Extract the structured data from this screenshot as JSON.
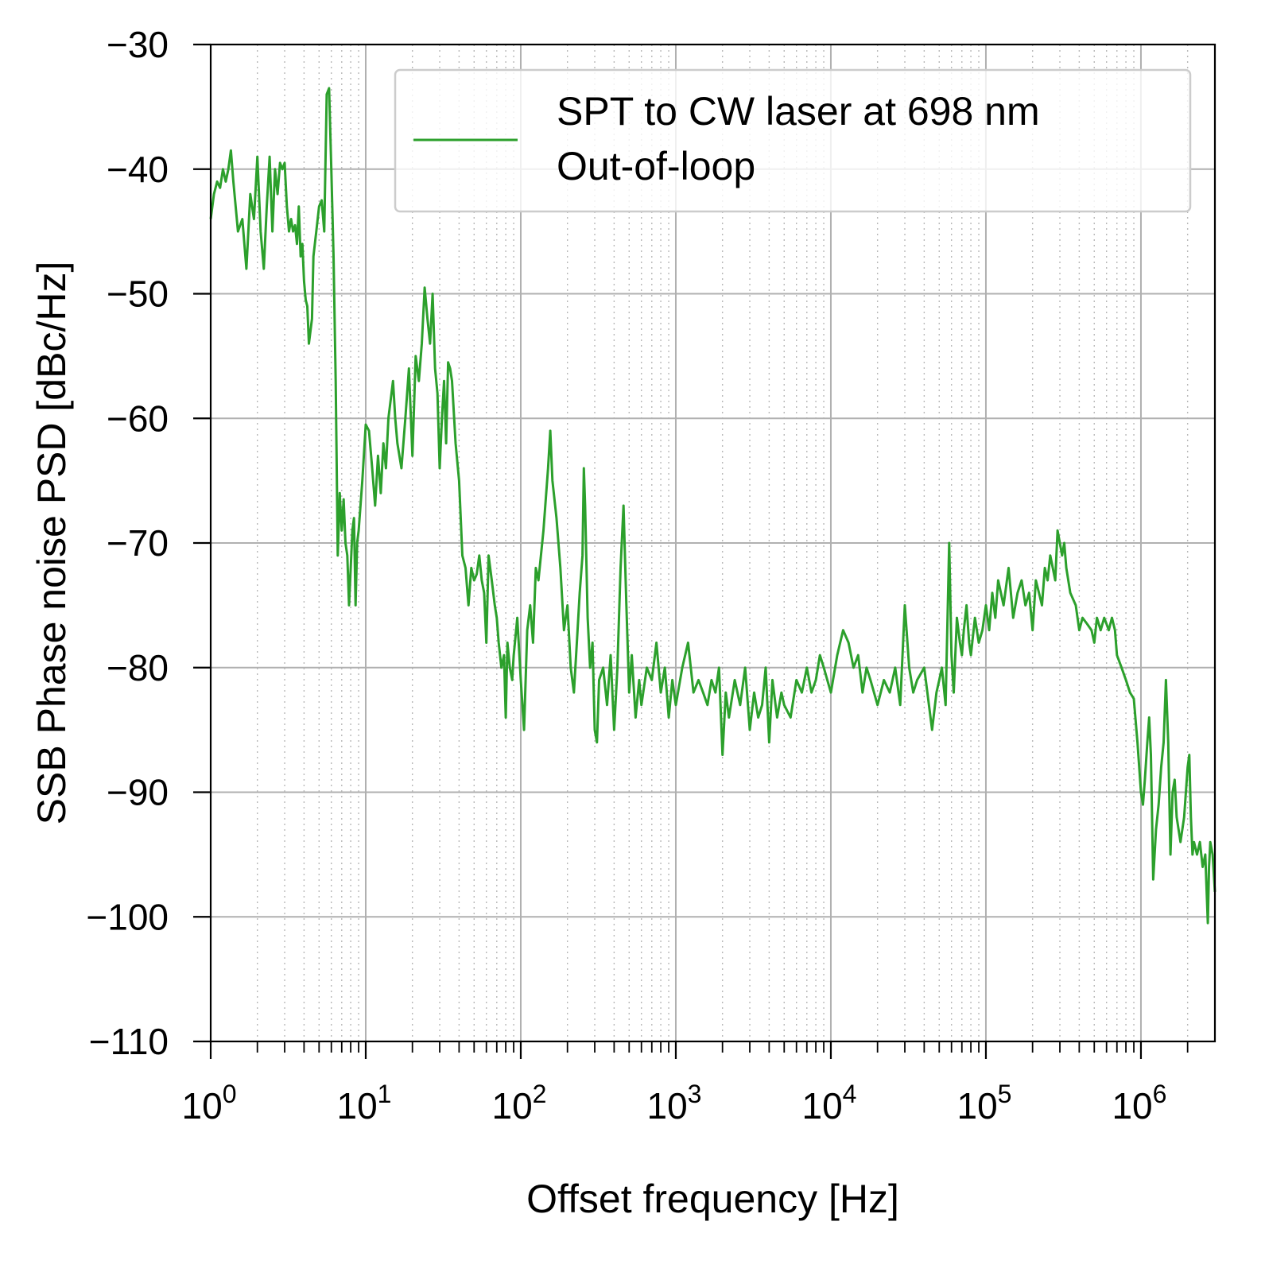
{
  "chart_data": {
    "type": "line",
    "xlabel": "Offset frequency [Hz]",
    "ylabel": "SSB Phase noise PSD [dBc/Hz]",
    "xscale": "log",
    "xlim": [
      1,
      3000000
    ],
    "ylim": [
      -110,
      -30
    ],
    "yticks": [
      "−30",
      "−40",
      "−50",
      "−60",
      "−70",
      "−80",
      "−90",
      "−100",
      "−110"
    ],
    "xticks": [
      {
        "base": "10",
        "exp": "0"
      },
      {
        "base": "10",
        "exp": "1"
      },
      {
        "base": "10",
        "exp": "2"
      },
      {
        "base": "10",
        "exp": "3"
      },
      {
        "base": "10",
        "exp": "4"
      },
      {
        "base": "10",
        "exp": "5"
      },
      {
        "base": "10",
        "exp": "6"
      }
    ],
    "grid": true,
    "legend_position": "top-right",
    "legend_lines": [
      "SPT to CW laser at 698 nm",
      "Out-of-loop"
    ],
    "series": [
      {
        "color": "#2ca02c",
        "points": [
          [
            1.0,
            -44
          ],
          [
            1.05,
            -42
          ],
          [
            1.1,
            -41
          ],
          [
            1.15,
            -41.5
          ],
          [
            1.2,
            -40
          ],
          [
            1.25,
            -41
          ],
          [
            1.3,
            -40
          ],
          [
            1.35,
            -38.5
          ],
          [
            1.4,
            -41
          ],
          [
            1.5,
            -45
          ],
          [
            1.6,
            -44
          ],
          [
            1.7,
            -48
          ],
          [
            1.8,
            -42
          ],
          [
            1.9,
            -44
          ],
          [
            2.0,
            -39
          ],
          [
            2.1,
            -45
          ],
          [
            2.2,
            -48
          ],
          [
            2.3,
            -43
          ],
          [
            2.4,
            -39
          ],
          [
            2.5,
            -45
          ],
          [
            2.6,
            -40
          ],
          [
            2.7,
            -42
          ],
          [
            2.8,
            -39.5
          ],
          [
            2.9,
            -40
          ],
          [
            3.0,
            -39.5
          ],
          [
            3.1,
            -43
          ],
          [
            3.2,
            -45
          ],
          [
            3.3,
            -44
          ],
          [
            3.4,
            -45
          ],
          [
            3.5,
            -44.5
          ],
          [
            3.6,
            -46
          ],
          [
            3.7,
            -43
          ],
          [
            3.8,
            -47
          ],
          [
            3.9,
            -46
          ],
          [
            4.0,
            -49
          ],
          [
            4.1,
            -50.5
          ],
          [
            4.2,
            -51
          ],
          [
            4.3,
            -54
          ],
          [
            4.5,
            -52
          ],
          [
            4.6,
            -47
          ],
          [
            4.8,
            -45
          ],
          [
            5.0,
            -43
          ],
          [
            5.2,
            -42.5
          ],
          [
            5.4,
            -45
          ],
          [
            5.6,
            -34
          ],
          [
            5.8,
            -33.5
          ],
          [
            6.0,
            -40
          ],
          [
            6.2,
            -47
          ],
          [
            6.4,
            -57
          ],
          [
            6.6,
            -71
          ],
          [
            6.8,
            -66
          ],
          [
            7.0,
            -69
          ],
          [
            7.2,
            -66.5
          ],
          [
            7.4,
            -70
          ],
          [
            7.6,
            -71
          ],
          [
            7.8,
            -75
          ],
          [
            8.0,
            -72
          ],
          [
            8.2,
            -69
          ],
          [
            8.4,
            -68
          ],
          [
            8.6,
            -75
          ],
          [
            8.8,
            -70
          ],
          [
            9.0,
            -69
          ],
          [
            9.5,
            -65
          ],
          [
            10,
            -60.5
          ],
          [
            10.5,
            -61
          ],
          [
            11,
            -64
          ],
          [
            11.5,
            -67
          ],
          [
            12,
            -63
          ],
          [
            12.5,
            -66
          ],
          [
            13,
            -62
          ],
          [
            13.5,
            -64
          ],
          [
            14,
            -60
          ],
          [
            15,
            -57
          ],
          [
            15.5,
            -60
          ],
          [
            16,
            -62
          ],
          [
            17,
            -64
          ],
          [
            18,
            -60
          ],
          [
            19,
            -56
          ],
          [
            20,
            -63
          ],
          [
            21,
            -55
          ],
          [
            22,
            -57
          ],
          [
            23,
            -54
          ],
          [
            24,
            -49.5
          ],
          [
            25,
            -52
          ],
          [
            26,
            -54
          ],
          [
            27,
            -50
          ],
          [
            28,
            -56
          ],
          [
            29,
            -58
          ],
          [
            30,
            -64
          ],
          [
            31,
            -60
          ],
          [
            32,
            -57
          ],
          [
            33,
            -62
          ],
          [
            34,
            -55.5
          ],
          [
            35,
            -56
          ],
          [
            36,
            -57
          ],
          [
            38,
            -62
          ],
          [
            40,
            -65
          ],
          [
            42,
            -71
          ],
          [
            44,
            -72
          ],
          [
            46,
            -75
          ],
          [
            48,
            -72
          ],
          [
            50,
            -73
          ],
          [
            52,
            -72.5
          ],
          [
            54,
            -71
          ],
          [
            56,
            -73
          ],
          [
            58,
            -74
          ],
          [
            60,
            -78
          ],
          [
            62,
            -71
          ],
          [
            65,
            -73
          ],
          [
            68,
            -75
          ],
          [
            70,
            -76
          ],
          [
            72,
            -78
          ],
          [
            75,
            -80
          ],
          [
            78,
            -79
          ],
          [
            80,
            -84
          ],
          [
            82,
            -78
          ],
          [
            85,
            -80
          ],
          [
            88,
            -81
          ],
          [
            90,
            -79
          ],
          [
            95,
            -76
          ],
          [
            100,
            -81
          ],
          [
            105,
            -85
          ],
          [
            110,
            -77
          ],
          [
            115,
            -75
          ],
          [
            120,
            -78
          ],
          [
            125,
            -72
          ],
          [
            130,
            -73
          ],
          [
            140,
            -69
          ],
          [
            150,
            -64
          ],
          [
            155,
            -61
          ],
          [
            160,
            -65
          ],
          [
            170,
            -68
          ],
          [
            180,
            -72
          ],
          [
            190,
            -77
          ],
          [
            200,
            -75
          ],
          [
            210,
            -80
          ],
          [
            220,
            -82
          ],
          [
            230,
            -78
          ],
          [
            240,
            -74
          ],
          [
            250,
            -71
          ],
          [
            255,
            -64
          ],
          [
            260,
            -67
          ],
          [
            270,
            -76
          ],
          [
            280,
            -80
          ],
          [
            290,
            -78
          ],
          [
            300,
            -85
          ],
          [
            310,
            -86
          ],
          [
            320,
            -81
          ],
          [
            340,
            -80
          ],
          [
            360,
            -83
          ],
          [
            380,
            -79
          ],
          [
            400,
            -85
          ],
          [
            420,
            -80
          ],
          [
            440,
            -72
          ],
          [
            460,
            -67
          ],
          [
            480,
            -75
          ],
          [
            500,
            -82
          ],
          [
            520,
            -79
          ],
          [
            550,
            -84
          ],
          [
            580,
            -81
          ],
          [
            600,
            -83
          ],
          [
            650,
            -80
          ],
          [
            700,
            -81
          ],
          [
            750,
            -78
          ],
          [
            800,
            -82
          ],
          [
            850,
            -80
          ],
          [
            900,
            -84
          ],
          [
            950,
            -81
          ],
          [
            1000,
            -83
          ],
          [
            1100,
            -80
          ],
          [
            1200,
            -78
          ],
          [
            1300,
            -82
          ],
          [
            1400,
            -81
          ],
          [
            1500,
            -82
          ],
          [
            1600,
            -83
          ],
          [
            1700,
            -81
          ],
          [
            1800,
            -82
          ],
          [
            1900,
            -80
          ],
          [
            2000,
            -87
          ],
          [
            2100,
            -82
          ],
          [
            2200,
            -84
          ],
          [
            2400,
            -81
          ],
          [
            2600,
            -83
          ],
          [
            2800,
            -80
          ],
          [
            3000,
            -85
          ],
          [
            3200,
            -82
          ],
          [
            3400,
            -84
          ],
          [
            3600,
            -83
          ],
          [
            3800,
            -80
          ],
          [
            4000,
            -86
          ],
          [
            4200,
            -81
          ],
          [
            4500,
            -84
          ],
          [
            4800,
            -82
          ],
          [
            5000,
            -83
          ],
          [
            5500,
            -84
          ],
          [
            6000,
            -81
          ],
          [
            6500,
            -82
          ],
          [
            7000,
            -80
          ],
          [
            7500,
            -82
          ],
          [
            8000,
            -81
          ],
          [
            8500,
            -79
          ],
          [
            9000,
            -80
          ],
          [
            10000,
            -82
          ],
          [
            11000,
            -79
          ],
          [
            12000,
            -77
          ],
          [
            13000,
            -78
          ],
          [
            14000,
            -80
          ],
          [
            15000,
            -79
          ],
          [
            16000,
            -82
          ],
          [
            17000,
            -80
          ],
          [
            18000,
            -81
          ],
          [
            20000,
            -83
          ],
          [
            22000,
            -81
          ],
          [
            24000,
            -82
          ],
          [
            26000,
            -80
          ],
          [
            28000,
            -83
          ],
          [
            30000,
            -75
          ],
          [
            32000,
            -80
          ],
          [
            34000,
            -82
          ],
          [
            36000,
            -81
          ],
          [
            40000,
            -80
          ],
          [
            45000,
            -85
          ],
          [
            48000,
            -82
          ],
          [
            50000,
            -81
          ],
          [
            52000,
            -80
          ],
          [
            55000,
            -83
          ],
          [
            58000,
            -70
          ],
          [
            60000,
            -79
          ],
          [
            62000,
            -82
          ],
          [
            65000,
            -76
          ],
          [
            68000,
            -78
          ],
          [
            70000,
            -79
          ],
          [
            72000,
            -77
          ],
          [
            75000,
            -75
          ],
          [
            78000,
            -78
          ],
          [
            80000,
            -79
          ],
          [
            85000,
            -76
          ],
          [
            90000,
            -78
          ],
          [
            95000,
            -77
          ],
          [
            100000,
            -75
          ],
          [
            105000,
            -77
          ],
          [
            110000,
            -74
          ],
          [
            115000,
            -76
          ],
          [
            120000,
            -73
          ],
          [
            130000,
            -75
          ],
          [
            140000,
            -72
          ],
          [
            150000,
            -76
          ],
          [
            160000,
            -74
          ],
          [
            170000,
            -73
          ],
          [
            180000,
            -75
          ],
          [
            190000,
            -74
          ],
          [
            200000,
            -77
          ],
          [
            210000,
            -73
          ],
          [
            220000,
            -74
          ],
          [
            230000,
            -75
          ],
          [
            240000,
            -72
          ],
          [
            250000,
            -73
          ],
          [
            260000,
            -71
          ],
          [
            270000,
            -72
          ],
          [
            280000,
            -73
          ],
          [
            290000,
            -69
          ],
          [
            300000,
            -70
          ],
          [
            310000,
            -71
          ],
          [
            320000,
            -70
          ],
          [
            330000,
            -72
          ],
          [
            340000,
            -73
          ],
          [
            350000,
            -74
          ],
          [
            380000,
            -75
          ],
          [
            400000,
            -77
          ],
          [
            420000,
            -76
          ],
          [
            450000,
            -76.5
          ],
          [
            480000,
            -77
          ],
          [
            500000,
            -78
          ],
          [
            520000,
            -76
          ],
          [
            550000,
            -77
          ],
          [
            580000,
            -76
          ],
          [
            600000,
            -76.5
          ],
          [
            620000,
            -77
          ],
          [
            650000,
            -76
          ],
          [
            680000,
            -77
          ],
          [
            700000,
            -79
          ],
          [
            750000,
            -80
          ],
          [
            800000,
            -81
          ],
          [
            850000,
            -82
          ],
          [
            900000,
            -82.5
          ],
          [
            950000,
            -86
          ],
          [
            1000000,
            -90
          ],
          [
            1030000,
            -91
          ],
          [
            1060000,
            -89
          ],
          [
            1100000,
            -86
          ],
          [
            1130000,
            -84
          ],
          [
            1160000,
            -87
          ],
          [
            1200000,
            -97
          ],
          [
            1250000,
            -93
          ],
          [
            1300000,
            -91
          ],
          [
            1350000,
            -88
          ],
          [
            1400000,
            -86
          ],
          [
            1450000,
            -81
          ],
          [
            1500000,
            -86
          ],
          [
            1550000,
            -95
          ],
          [
            1600000,
            -90
          ],
          [
            1650000,
            -89
          ],
          [
            1700000,
            -92
          ],
          [
            1800000,
            -94
          ],
          [
            1900000,
            -92
          ],
          [
            2000000,
            -88
          ],
          [
            2050000,
            -87
          ],
          [
            2100000,
            -92
          ],
          [
            2150000,
            -95
          ],
          [
            2200000,
            -94
          ],
          [
            2300000,
            -95
          ],
          [
            2400000,
            -94
          ],
          [
            2500000,
            -96
          ],
          [
            2600000,
            -95
          ],
          [
            2700000,
            -100.5
          ],
          [
            2750000,
            -96
          ],
          [
            2800000,
            -94
          ],
          [
            2900000,
            -95
          ],
          [
            3000000,
            -98
          ]
        ]
      }
    ]
  }
}
